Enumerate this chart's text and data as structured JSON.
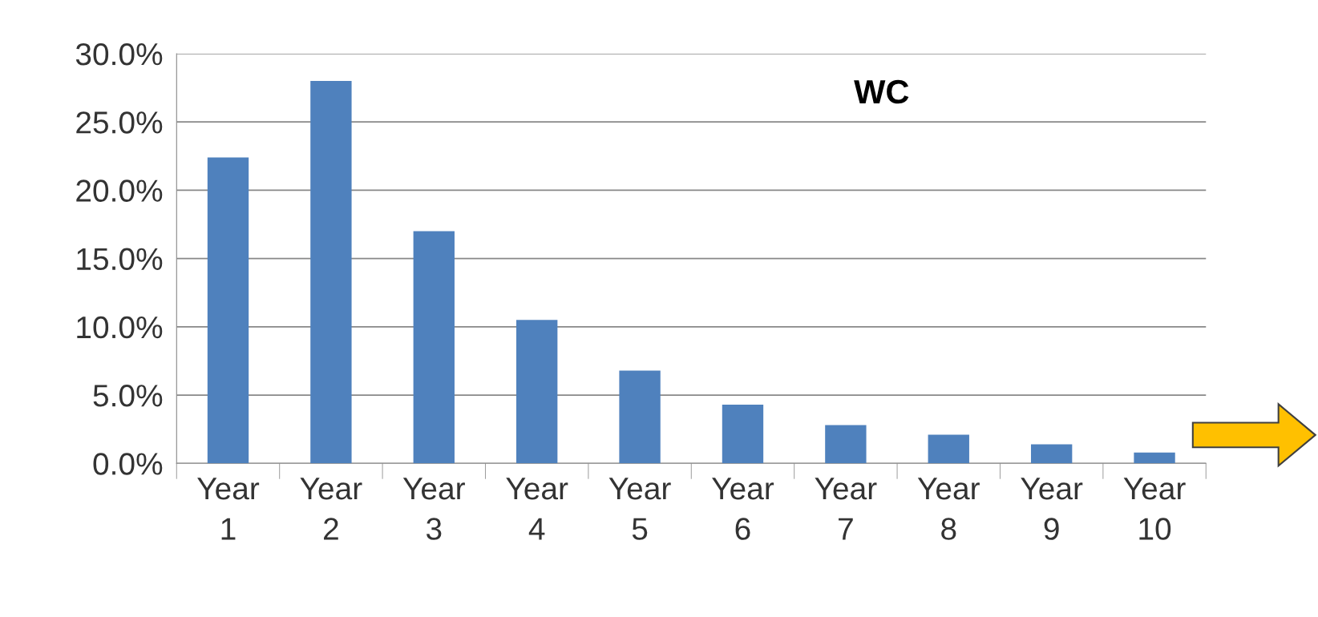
{
  "chart_data": {
    "type": "bar",
    "categories": [
      "Year\n1",
      "Year\n2",
      "Year\n3",
      "Year\n4",
      "Year\n5",
      "Year\n6",
      "Year\n7",
      "Year\n8",
      "Year\n9",
      "Year\n10"
    ],
    "values": [
      22.4,
      28.0,
      17.0,
      10.5,
      6.8,
      4.3,
      2.8,
      2.1,
      1.4,
      0.8
    ],
    "color": "#4f81bd",
    "ylim": [
      0,
      30
    ],
    "yticks": [
      {
        "value": 0,
        "label": "0.0%"
      },
      {
        "value": 5,
        "label": "5.0%"
      },
      {
        "value": 10,
        "label": "10.0%"
      },
      {
        "value": 15,
        "label": "15.0%"
      },
      {
        "value": 20,
        "label": "20.0%"
      },
      {
        "value": 25,
        "label": "25.0%"
      },
      {
        "value": 30,
        "label": "30.0%"
      }
    ],
    "grid": "y",
    "annotations": [
      "WC"
    ]
  }
}
